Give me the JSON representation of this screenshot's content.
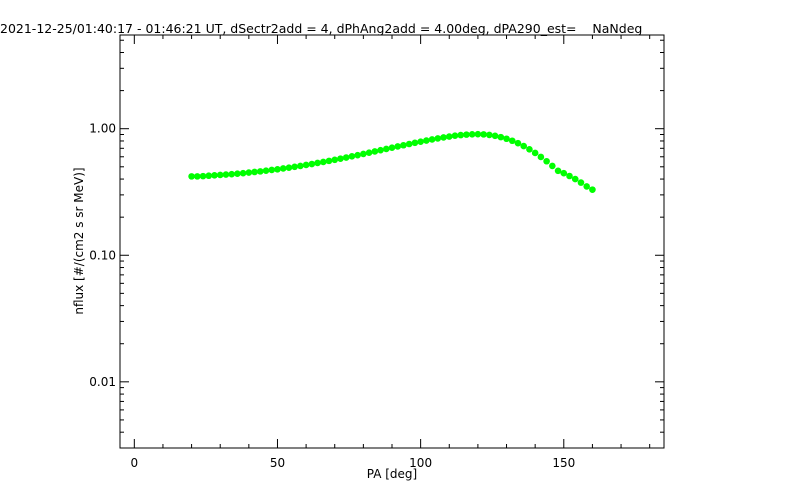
{
  "chart_data": {
    "type": "scatter",
    "title": "2021-12-25/01:40:17 - 01:46:21 UT, dSectr2add = 4, dPhAng2add = 4.00deg, dPA290_est=    NaNdeg",
    "xlabel": "PA [deg]",
    "ylabel": "nflux [#/(cm2 s sr MeV)]",
    "xlim": [
      -5,
      185
    ],
    "ylim": [
      0.003,
      5.5
    ],
    "yscale": "log",
    "x_ticks": [
      0,
      50,
      100,
      150
    ],
    "x_tick_labels": [
      "0",
      "50",
      "100",
      "150"
    ],
    "y_ticks": [
      0.01,
      0.1,
      1.0
    ],
    "y_tick_labels": [
      "0.01",
      "0.10",
      "1.00"
    ],
    "grid": false,
    "series": [
      {
        "color": "#00ff00",
        "x": [
          20,
          22,
          24,
          26,
          28,
          30,
          32,
          34,
          36,
          38,
          40,
          42,
          44,
          46,
          48,
          50,
          52,
          54,
          56,
          58,
          60,
          62,
          64,
          66,
          68,
          70,
          72,
          74,
          76,
          78,
          80,
          82,
          84,
          86,
          88,
          90,
          92,
          94,
          96,
          98,
          100,
          102,
          104,
          106,
          108,
          110,
          112,
          114,
          116,
          118,
          120,
          122,
          124,
          126,
          128,
          130,
          132,
          134,
          136,
          138,
          140,
          142,
          144,
          146,
          148,
          150,
          152,
          154,
          156,
          158,
          160
        ],
        "values": [
          0.42,
          0.42,
          0.422,
          0.425,
          0.428,
          0.431,
          0.434,
          0.437,
          0.441,
          0.445,
          0.45,
          0.455,
          0.46,
          0.466,
          0.472,
          0.478,
          0.485,
          0.492,
          0.5,
          0.508,
          0.517,
          0.526,
          0.536,
          0.546,
          0.557,
          0.568,
          0.58,
          0.592,
          0.605,
          0.618,
          0.632,
          0.646,
          0.661,
          0.676,
          0.692,
          0.708,
          0.724,
          0.74,
          0.757,
          0.774,
          0.79,
          0.806,
          0.822,
          0.838,
          0.853,
          0.867,
          0.88,
          0.89,
          0.898,
          0.903,
          0.905,
          0.902,
          0.893,
          0.878,
          0.858,
          0.833,
          0.803,
          0.768,
          0.729,
          0.687,
          0.643,
          0.598,
          0.553,
          0.508,
          0.465,
          0.445,
          0.423,
          0.4,
          0.375,
          0.35,
          0.33
        ]
      }
    ]
  }
}
